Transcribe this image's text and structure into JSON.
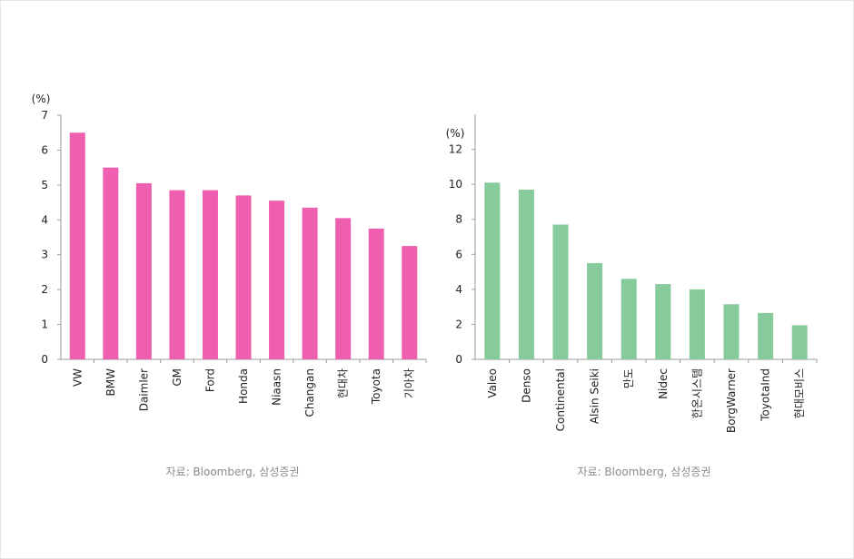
{
  "chart_data": [
    {
      "type": "bar",
      "unit": "(%)",
      "categories": [
        "VW",
        "BMW",
        "Daimler",
        "GM",
        "Ford",
        "Honda",
        "Niaasn",
        "Changan",
        "현대차",
        "Toyota",
        "기아차"
      ],
      "values": [
        6.5,
        5.5,
        5.05,
        4.85,
        4.85,
        4.7,
        4.55,
        4.35,
        4.05,
        3.75,
        3.25
      ],
      "ylim": [
        0,
        7
      ],
      "yticks": [
        0,
        1,
        2,
        3,
        4,
        5,
        6,
        7
      ],
      "color": "#ef5faf",
      "source": "자료: Bloomberg, 삼성증권"
    },
    {
      "type": "bar",
      "unit": "(%)",
      "categories": [
        "Valeo",
        "Denso",
        "Continental",
        "Alsin Seiki",
        "만도",
        "Nidec",
        "한온시스템",
        "BorgWarner",
        "ToyotaInd",
        "현대모비스"
      ],
      "values": [
        10.1,
        9.7,
        7.7,
        5.5,
        4.6,
        4.3,
        4.0,
        3.15,
        2.65,
        1.95
      ],
      "ylim": [
        0,
        14
      ],
      "yticks": [
        0,
        2,
        4,
        6,
        8,
        10,
        12
      ],
      "color": "#87cb9c",
      "source": "자료: Bloomberg, 삼성증권"
    }
  ]
}
